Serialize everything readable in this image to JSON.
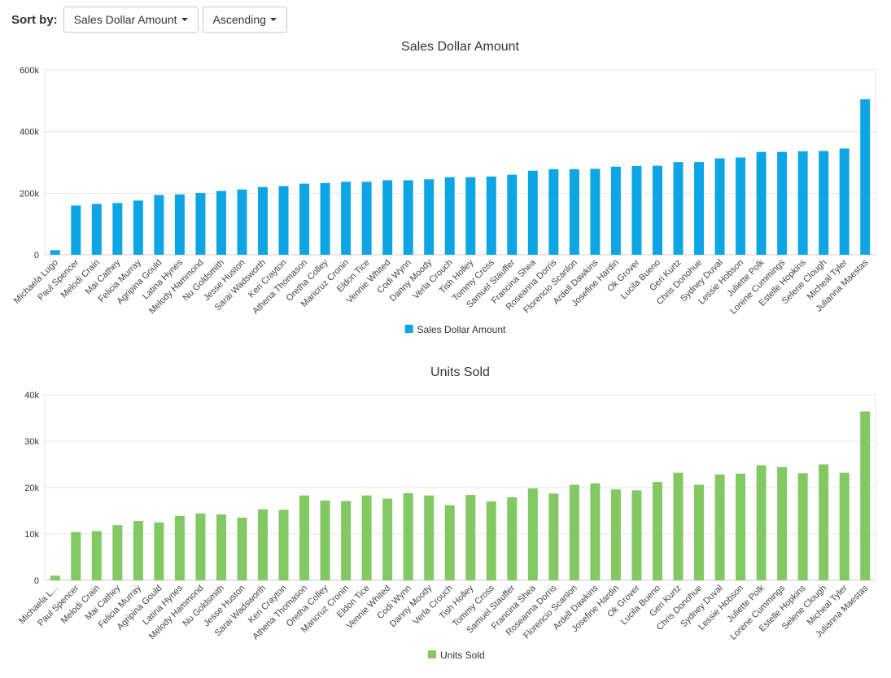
{
  "toolbar": {
    "sort_label": "Sort by:",
    "sort_field": "Sales Dollar Amount",
    "sort_order": "Ascending"
  },
  "chart_data": [
    {
      "type": "bar",
      "title": "Sales Dollar Amount",
      "color": "#0ea5e4",
      "ylim": [
        0,
        600000
      ],
      "yticks": [
        "0",
        "200k",
        "400k",
        "600k"
      ],
      "categories": [
        "Michaela Lugo",
        "Paul Spencer",
        "Melodi Crain",
        "Mai Cathey",
        "Felicia Murray",
        "Agripina Gould",
        "Latina Hynes",
        "Melody Hammond",
        "Nu Goldsmith",
        "Jesse Huston",
        "Sarai Wadsworth",
        "Keri Crayton",
        "Athena Thomason",
        "Oretha Colley",
        "Maricruz Cronin",
        "Eldon Tice",
        "Vennie Whited",
        "Codi Wynn",
        "Danny Moody",
        "Verla Crouch",
        "Tish Holley",
        "Tommy Cross",
        "Samuel Stauffer",
        "Francina Shea",
        "Roseanna Dorris",
        "Florencio Scanlon",
        "Ardell Dawkins",
        "Josefine Hardin",
        "Ok Grover",
        "Lucila Bueno",
        "Geri Kurtz",
        "Chris Donohue",
        "Sydney Duval",
        "Lessie Hobson",
        "Juliette Polk",
        "Lorene Cummings",
        "Estelle Hopkins",
        "Selene Clough",
        "Micheal Tyler",
        "Julianna Maestas"
      ],
      "series": [
        {
          "name": "Sales Dollar Amount",
          "values": [
            15000,
            160000,
            165000,
            168000,
            176000,
            194000,
            196000,
            201000,
            207000,
            212000,
            220000,
            223000,
            231000,
            233000,
            237000,
            237000,
            242000,
            242000,
            245000,
            252000,
            252000,
            254000,
            260000,
            273000,
            278000,
            278000,
            279000,
            286000,
            288000,
            289000,
            301000,
            301000,
            313000,
            316000,
            334000,
            334000,
            336000,
            337000,
            345000,
            505000
          ]
        }
      ]
    },
    {
      "type": "bar",
      "title": "Units Sold",
      "color": "#82c863",
      "ylim": [
        0,
        40000
      ],
      "yticks": [
        "0",
        "10k",
        "20k",
        "30k",
        "40k"
      ],
      "categories": [
        "Michaela L...",
        "Paul Spencer",
        "Melodi Crain",
        "Mai Cathey",
        "Felicia Murray",
        "Agripina Gould",
        "Latina Hynes",
        "Melody Hammond",
        "Nu Goldsmith",
        "Jesse Huston",
        "Sarai Wadsworth",
        "Keri Crayton",
        "Athena Thomason",
        "Oretha Colley",
        "Maricruz Cronin",
        "Eldon Tice",
        "Vennie Whited",
        "Codi Wynn",
        "Danny Moody",
        "Verla Crouch",
        "Tish Holley",
        "Tommy Cross",
        "Samuel Stauffer",
        "Francina Shea",
        "Roseanna Dorris",
        "Florencio Scanlon",
        "Ardell Dawkins",
        "Josefine Hardin",
        "Ok Grover",
        "Lucila Bueno",
        "Geri Kurtz",
        "Chris Donohue",
        "Sydney Duval",
        "Lessie Hobson",
        "Juliette Polk",
        "Lorene Cummings",
        "Estelle Hopkins",
        "Selene Clough",
        "Micheal Tyler",
        "Julianna Maestas"
      ],
      "series": [
        {
          "name": "Units Sold",
          "values": [
            1000,
            10400,
            10600,
            11900,
            12800,
            12500,
            13900,
            14400,
            14200,
            13500,
            15300,
            15200,
            18300,
            17200,
            17100,
            18300,
            17600,
            18800,
            18300,
            16200,
            18400,
            17000,
            17900,
            19800,
            18700,
            20600,
            20900,
            19600,
            19400,
            21200,
            23200,
            20600,
            22800,
            23000,
            24800,
            24400,
            23100,
            25000,
            23200,
            36400
          ]
        }
      ]
    }
  ]
}
